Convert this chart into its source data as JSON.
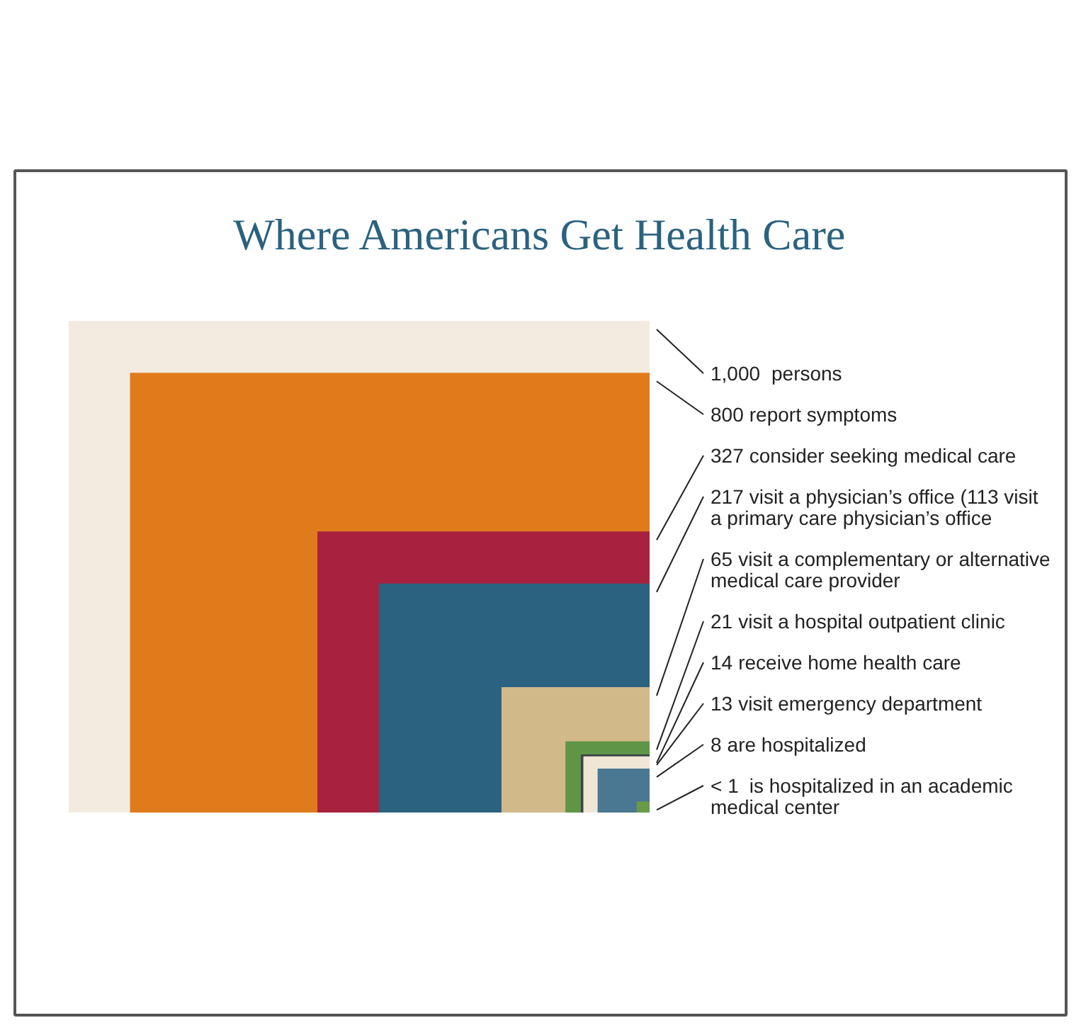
{
  "chart_data": {
    "type": "other",
    "title": "Where Americans Get Health Care",
    "categories": [
      "persons",
      "report symptoms",
      "consider seeking medical care",
      "visit a physician’s office (113 visit a primary care physician’s office",
      "visit a complementary or alternative medical care provider",
      "visit a hospital outpatient clinic",
      "receive home health care",
      "visit emergency department",
      "are hospitalized",
      "is hospitalized in an academic medical center"
    ],
    "values": [
      1000,
      800,
      327,
      217,
      65,
      21,
      14,
      13,
      8,
      0.5
    ],
    "value_labels": [
      "1,000",
      "800",
      "327",
      "217",
      "65",
      "21",
      "14",
      "13",
      "8",
      "< 1"
    ],
    "colors": [
      "#f3ebe0",
      "#e07b1c",
      "#a8223f",
      "#2a6280",
      "#d2b98a",
      "#5f9547",
      "#3d434a",
      "#efe6d6",
      "#4a7791",
      "#6a9a48"
    ]
  }
}
